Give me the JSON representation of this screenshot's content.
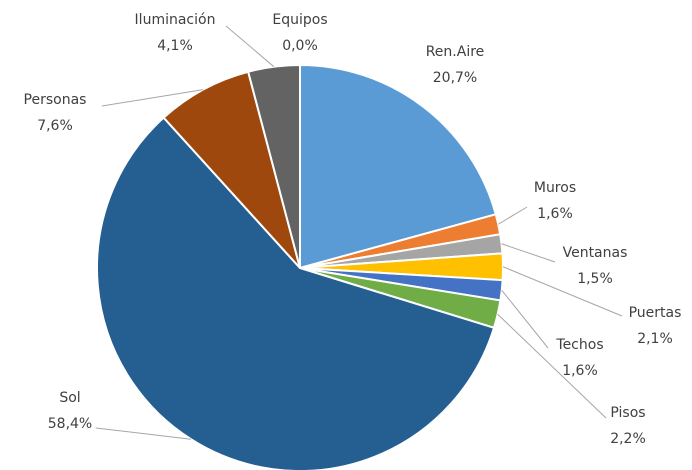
{
  "chart_data": {
    "type": "pie",
    "categories": [
      "Ren.Aire",
      "Muros",
      "Ventanas",
      "Puertas",
      "Techos",
      "Pisos",
      "Sol",
      "Personas",
      "Iluminación",
      "Equipos"
    ],
    "values": [
      20.7,
      1.6,
      1.5,
      2.1,
      1.6,
      2.2,
      58.4,
      7.6,
      4.1,
      0.0
    ],
    "value_labels": [
      "20,7%",
      "1,6%",
      "1,5%",
      "2,1%",
      "1,6%",
      "2,2%",
      "58,4%",
      "7,6%",
      "4,1%",
      "0,0%"
    ],
    "colors": [
      "#5b9bd5",
      "#ed7d31",
      "#a5a5a5",
      "#ffc000",
      "#4472c4",
      "#70ad47",
      "#255e91",
      "#9e480e",
      "#636363",
      "#997300"
    ]
  }
}
